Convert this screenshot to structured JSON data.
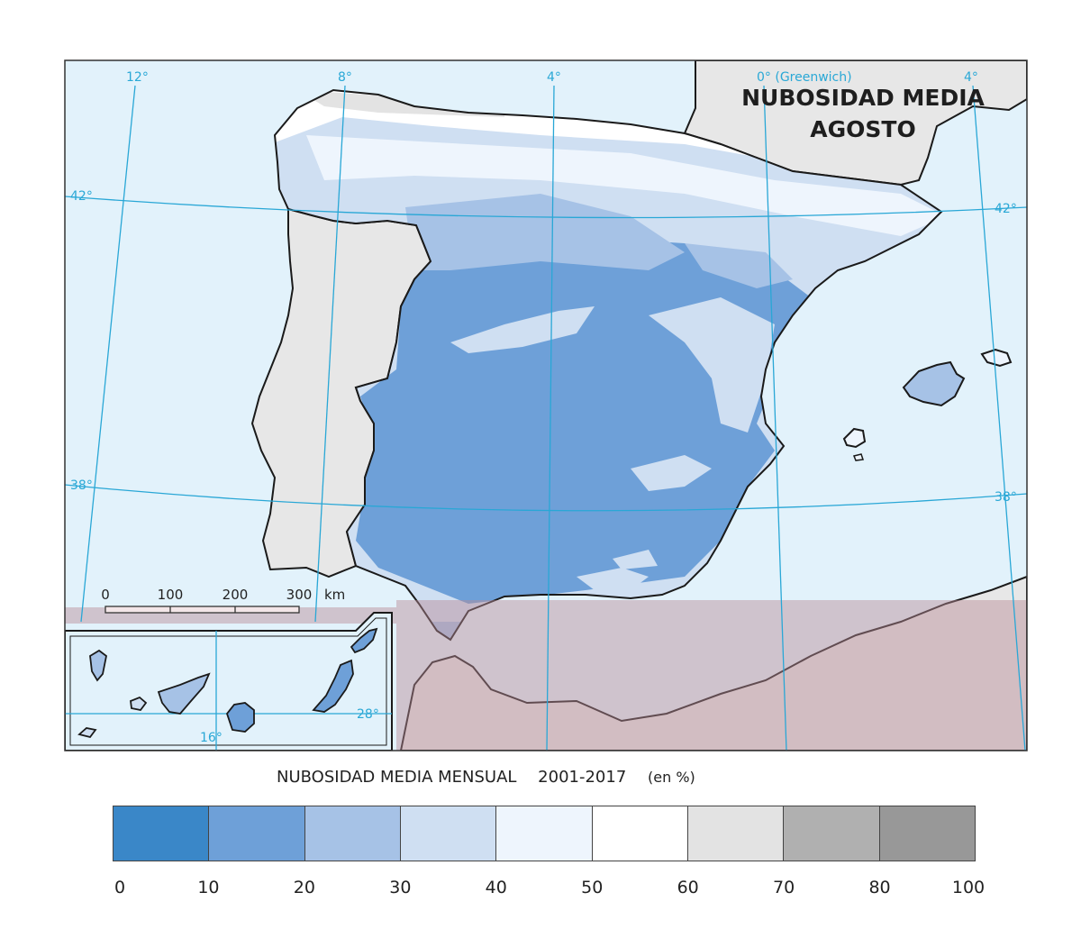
{
  "map": {
    "title_line1": "NUBOSIDAD MEDIA",
    "title_line2": "AGOSTO",
    "meridian_labels": [
      "12°",
      "8°",
      "4°",
      "0° (Greenwich)",
      "4°"
    ],
    "parallel_labels_left": [
      "42°",
      "38°"
    ],
    "parallel_labels_right": [
      "42°",
      "38°"
    ],
    "canary_labels": {
      "parallel": "28°",
      "meridian": "16°"
    },
    "scale": {
      "ticks": [
        "0",
        "100",
        "200",
        "300"
      ],
      "unit": "km"
    }
  },
  "legend": {
    "title": "NUBOSIDAD MEDIA MENSUAL",
    "period": "2001-2017",
    "unit": "(en %)",
    "ticks": [
      "0",
      "10",
      "20",
      "30",
      "40",
      "50",
      "60",
      "70",
      "80",
      "100"
    ],
    "colors": [
      "#3a87c8",
      "#6ea0d8",
      "#a6c2e6",
      "#cfdff2",
      "#eef5fd",
      "#ffffff",
      "#e3e3e3",
      "#b0b0b0",
      "#989898"
    ]
  },
  "palette": {
    "sea": "#e2f2fb",
    "foreign_land": "#e7e7e7",
    "africa_overlay": "#d4b7bd",
    "graticule": "#29a7d6"
  }
}
